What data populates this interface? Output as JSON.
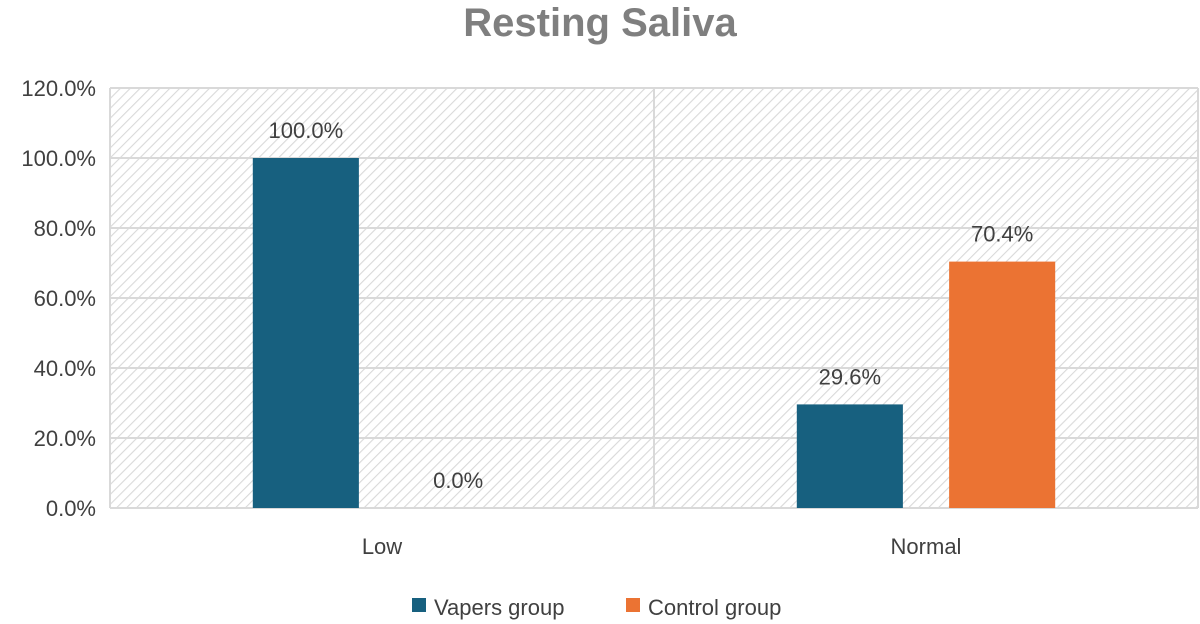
{
  "chart_data": {
    "type": "bar",
    "title": "Resting Saliva",
    "xlabel": "",
    "ylabel": "",
    "categories": [
      "Low",
      "Normal"
    ],
    "series": [
      {
        "name": "Vapers group",
        "color": "#17607f",
        "values": [
          100.0,
          29.6
        ],
        "labels": [
          "100.0%",
          "29.6%"
        ]
      },
      {
        "name": "Control group",
        "color": "#eb7333",
        "values": [
          0.0,
          70.4
        ],
        "labels": [
          "0.0%",
          "70.4%"
        ]
      }
    ],
    "ylim": [
      0,
      120
    ],
    "yticks": [
      0,
      20,
      40,
      60,
      80,
      100,
      120
    ],
    "ytick_labels": [
      "0.0%",
      "20.0%",
      "40.0%",
      "60.0%",
      "80.0%",
      "100.0%",
      "120.0%"
    ],
    "grid": true,
    "legend_position": "bottom-center"
  }
}
